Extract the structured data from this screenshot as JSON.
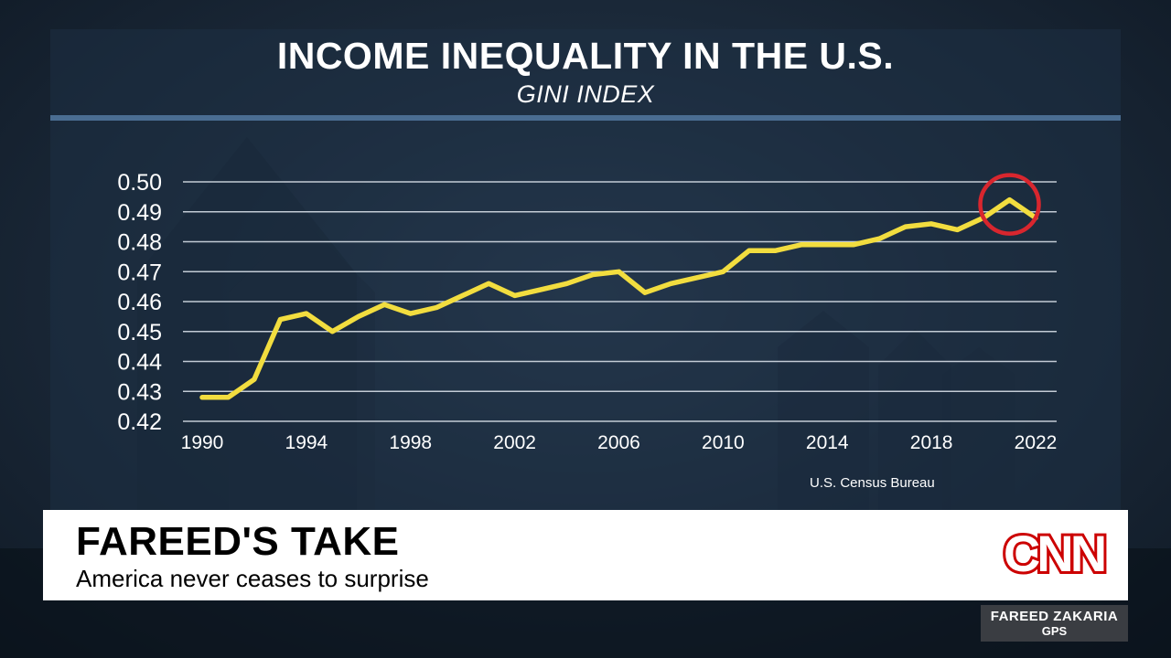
{
  "chart_data": {
    "type": "line",
    "title": "INCOME INEQUALITY IN THE U.S.",
    "subtitle": "GINI INDEX",
    "source": "U.S. Census Bureau",
    "xlim": [
      1990,
      2022
    ],
    "ylim": [
      0.42,
      0.5
    ],
    "x_ticks": [
      "1990",
      "1994",
      "1998",
      "2002",
      "2006",
      "2010",
      "2014",
      "2018",
      "2022"
    ],
    "y_ticks": [
      "0.42",
      "0.43",
      "0.44",
      "0.45",
      "0.46",
      "0.47",
      "0.48",
      "0.49",
      "0.50"
    ],
    "grid": true,
    "line_color": "#f2dd3f",
    "highlight_color": "#d8262e",
    "highlight_year": 2021,
    "series": [
      {
        "x": [
          1990,
          1991,
          1992,
          1993,
          1994,
          1995,
          1996,
          1997,
          1998,
          1999,
          2000,
          2001,
          2002,
          2003,
          2004,
          2005,
          2006,
          2007,
          2008,
          2009,
          2010,
          2011,
          2012,
          2013,
          2014,
          2015,
          2016,
          2017,
          2018,
          2019,
          2020,
          2021,
          2022
        ],
        "values": [
          0.428,
          0.428,
          0.434,
          0.454,
          0.456,
          0.45,
          0.455,
          0.459,
          0.456,
          0.458,
          0.462,
          0.466,
          0.462,
          0.464,
          0.466,
          0.469,
          0.47,
          0.463,
          0.466,
          0.468,
          0.47,
          0.477,
          0.477,
          0.479,
          0.479,
          0.479,
          0.481,
          0.485,
          0.486,
          0.484,
          0.488,
          0.494,
          0.488
        ]
      }
    ]
  },
  "lower_third": {
    "title": "FAREED'S TAKE",
    "subtitle": "America never ceases to surprise"
  },
  "logo": {
    "text": "CNN",
    "color": "#cc0000"
  },
  "nameplate": {
    "line1": "FAREED ZAKARIA",
    "line2": "GPS"
  }
}
